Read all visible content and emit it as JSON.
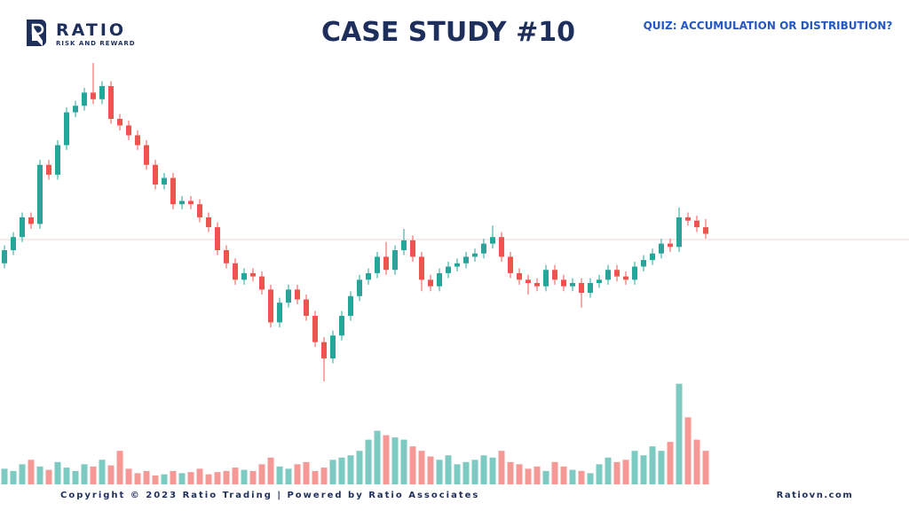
{
  "header": {
    "brand": "RATIO",
    "tagline": "RISK AND REWARD",
    "title": "CASE STUDY #10",
    "quiz": "QUIZ: ACCUMULATION OR DISTRIBUTION?"
  },
  "chart_data": {
    "type": "candlestick",
    "up_color": "#26a69a",
    "down_color": "#ef5350",
    "ylim": [
      0,
      100
    ],
    "volume_ylim": [
      0,
      100
    ],
    "ohlc": [
      [
        36,
        41.5,
        34.5,
        40
      ],
      [
        40,
        45.5,
        38.5,
        44
      ],
      [
        44,
        51.5,
        42.5,
        50
      ],
      [
        50,
        51.5,
        46.5,
        48
      ],
      [
        48,
        67.5,
        46.5,
        66
      ],
      [
        66,
        67.5,
        61.5,
        63
      ],
      [
        63,
        73.5,
        61.5,
        72
      ],
      [
        72,
        83.5,
        70.5,
        82
      ],
      [
        82,
        85.5,
        80.5,
        84
      ],
      [
        84,
        89.5,
        82.5,
        88
      ],
      [
        88,
        97,
        84.5,
        86
      ],
      [
        86,
        91.5,
        84.5,
        90
      ],
      [
        90,
        91.5,
        78.5,
        80
      ],
      [
        80,
        81.5,
        76.5,
        78
      ],
      [
        78,
        79.5,
        73.5,
        75
      ],
      [
        75,
        76.5,
        70.5,
        72
      ],
      [
        72,
        73.5,
        64.5,
        66
      ],
      [
        66,
        67.5,
        58.5,
        60
      ],
      [
        60,
        63.5,
        58.5,
        62
      ],
      [
        62,
        63.5,
        52.5,
        54
      ],
      [
        54,
        56.5,
        52.5,
        55
      ],
      [
        55,
        56.5,
        52.5,
        54
      ],
      [
        54,
        55.5,
        48.5,
        50
      ],
      [
        50,
        51.5,
        45.5,
        47
      ],
      [
        47,
        48.5,
        38.5,
        40
      ],
      [
        40,
        41.5,
        34.5,
        36
      ],
      [
        36,
        37.5,
        29.5,
        31
      ],
      [
        31,
        34.5,
        29.5,
        33
      ],
      [
        33,
        34.5,
        30.5,
        32
      ],
      [
        32,
        33.5,
        26.5,
        28
      ],
      [
        28,
        29.5,
        16.5,
        18
      ],
      [
        18,
        25.5,
        16.5,
        24
      ],
      [
        24,
        29.5,
        22.5,
        28
      ],
      [
        28,
        29.5,
        23.5,
        25
      ],
      [
        25,
        26.5,
        18.5,
        20
      ],
      [
        20,
        21.5,
        10.5,
        12
      ],
      [
        12,
        13.5,
        0,
        7
      ],
      [
        7,
        15.5,
        5.5,
        14
      ],
      [
        14,
        21.5,
        12.5,
        20
      ],
      [
        20,
        27.5,
        18.5,
        26
      ],
      [
        26,
        32.5,
        24.5,
        31
      ],
      [
        31,
        34.5,
        29.5,
        33
      ],
      [
        33,
        39.5,
        31.5,
        38
      ],
      [
        38,
        42.5,
        32.5,
        34
      ],
      [
        34,
        41.5,
        32.5,
        40
      ],
      [
        40,
        46.5,
        38.5,
        43
      ],
      [
        43,
        44.5,
        36.5,
        38
      ],
      [
        38,
        39.5,
        27.5,
        31
      ],
      [
        31,
        32.5,
        27.5,
        29
      ],
      [
        29,
        34.5,
        27.5,
        33
      ],
      [
        33,
        36.5,
        31.5,
        35
      ],
      [
        35,
        37.5,
        33.5,
        36
      ],
      [
        36,
        39.5,
        34.5,
        38
      ],
      [
        38,
        40.5,
        36.5,
        39
      ],
      [
        39,
        43.5,
        37.5,
        42
      ],
      [
        42,
        47.5,
        40.5,
        44
      ],
      [
        44,
        45.5,
        36.5,
        38
      ],
      [
        38,
        39.5,
        31.5,
        33
      ],
      [
        33,
        34.5,
        29.5,
        31
      ],
      [
        31,
        32.5,
        26.5,
        30
      ],
      [
        30,
        31.5,
        27.5,
        29
      ],
      [
        29,
        35.5,
        27.5,
        34
      ],
      [
        34,
        35.5,
        29.5,
        31
      ],
      [
        31,
        32.5,
        27.5,
        29
      ],
      [
        29,
        31.5,
        27.5,
        30
      ],
      [
        30,
        31.5,
        22.5,
        27
      ],
      [
        27,
        31.5,
        25.5,
        30
      ],
      [
        30,
        32.5,
        28.5,
        31
      ],
      [
        31,
        35.5,
        29.5,
        34
      ],
      [
        34,
        35.5,
        30.5,
        32
      ],
      [
        32,
        33.5,
        29.5,
        31
      ],
      [
        31,
        36.5,
        29.5,
        35
      ],
      [
        35,
        38.5,
        33.5,
        37
      ],
      [
        37,
        40.5,
        35.5,
        39
      ],
      [
        39,
        43.5,
        37.5,
        42
      ],
      [
        42,
        43.5,
        39.5,
        41
      ],
      [
        41,
        53,
        39.5,
        50
      ],
      [
        50,
        51.5,
        47.5,
        49
      ],
      [
        49,
        50.5,
        45.5,
        47
      ],
      [
        47,
        49.5,
        43.5,
        45
      ]
    ],
    "volume": [
      14,
      12,
      18,
      22,
      16,
      13,
      20,
      15,
      12,
      18,
      16,
      22,
      17,
      30,
      14,
      10,
      12,
      8,
      9,
      12,
      10,
      11,
      14,
      9,
      11,
      12,
      15,
      13,
      12,
      18,
      24,
      16,
      14,
      18,
      20,
      12,
      15,
      22,
      24,
      26,
      30,
      40,
      48,
      44,
      42,
      40,
      34,
      30,
      25,
      22,
      26,
      18,
      20,
      22,
      26,
      24,
      30,
      20,
      18,
      14,
      16,
      12,
      20,
      16,
      13,
      12,
      10,
      18,
      24,
      20,
      22,
      30,
      26,
      34,
      30,
      38,
      90,
      60,
      40,
      30
    ]
  },
  "footer": {
    "copyright": "Copyright © 2023 Ratio Trading | Powered by Ratio Associates",
    "site": "Ratiovn.com"
  }
}
